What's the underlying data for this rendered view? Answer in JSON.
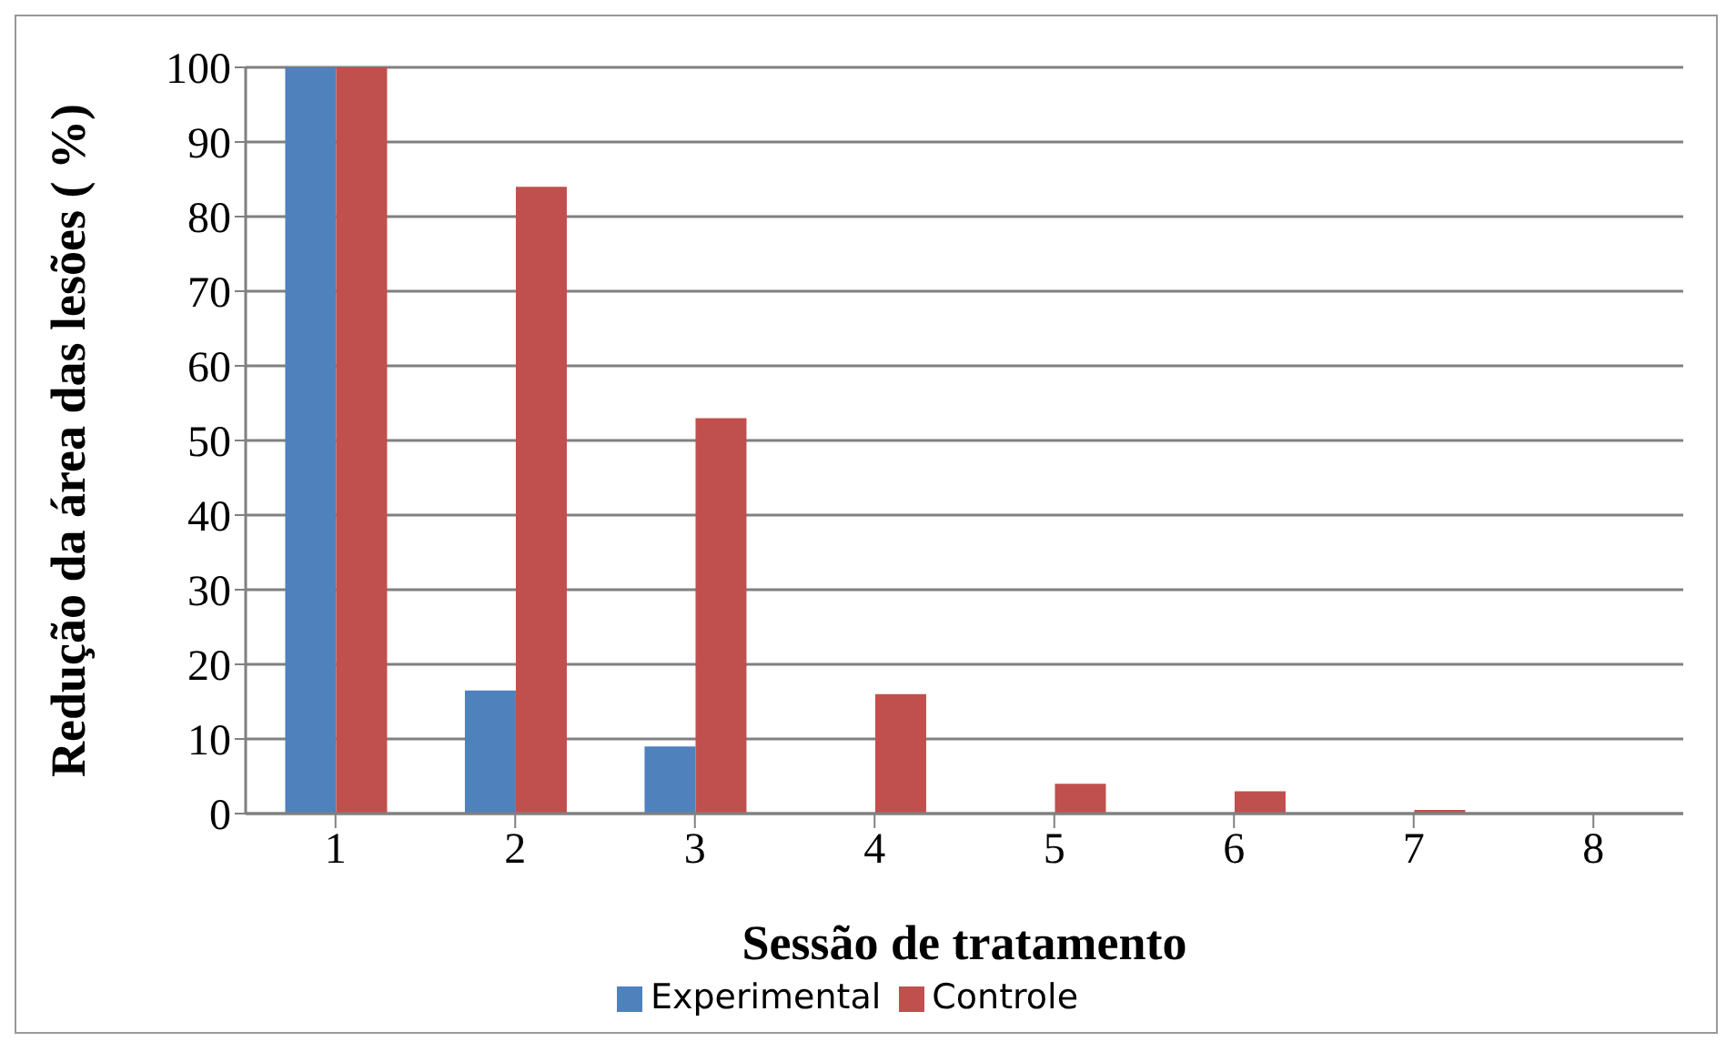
{
  "chart_data": {
    "type": "bar",
    "xlabel": "Sessão de tratamento",
    "ylabel": "Redução da área das lesões ( %)",
    "categories": [
      "1",
      "2",
      "3",
      "4",
      "5",
      "6",
      "7",
      "8"
    ],
    "series": [
      {
        "name": "Experimental",
        "color": "#4f81bd",
        "values": [
          100,
          16.5,
          9,
          0,
          0,
          0,
          0,
          0
        ]
      },
      {
        "name": "Controle",
        "color": "#c0504d",
        "values": [
          100,
          84,
          53,
          16,
          4,
          3,
          0.5,
          0
        ]
      }
    ],
    "ylim": [
      0,
      100
    ],
    "yticks": [
      0,
      10,
      20,
      30,
      40,
      50,
      60,
      70,
      80,
      90,
      100
    ],
    "grid": "y",
    "legend": "bottom"
  }
}
